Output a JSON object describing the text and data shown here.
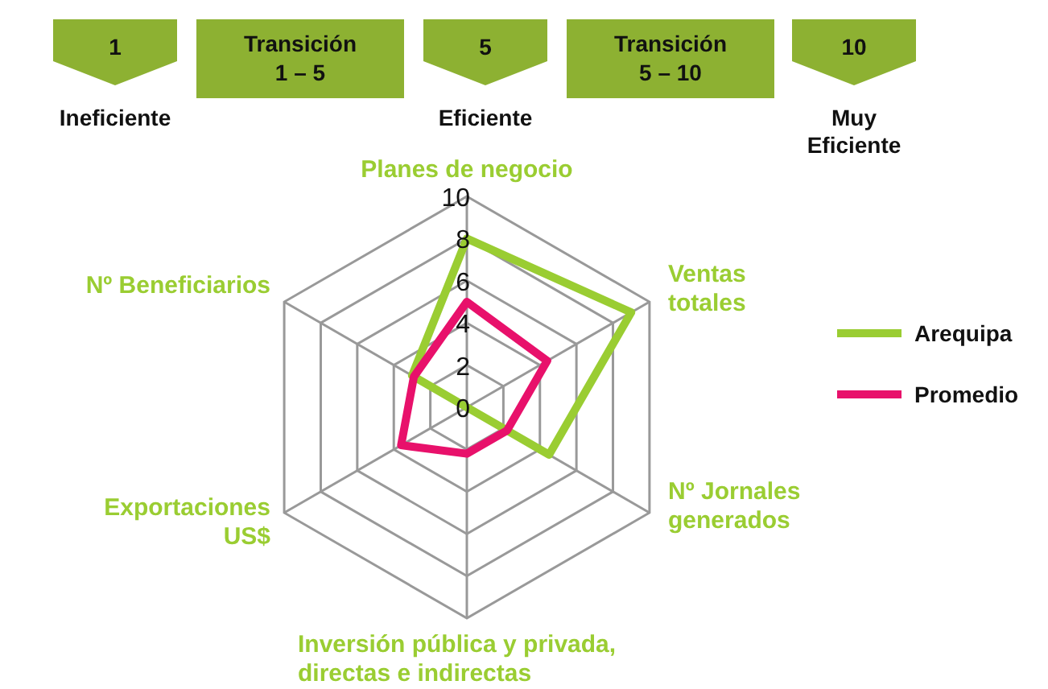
{
  "chart_data": {
    "type": "radar",
    "categories": [
      "Planes de negocio",
      "Ventas\ntotales",
      "Nº Jornales\ngenerados",
      "Inversión pública y privada,\ndirectas e indirectas",
      "Exportaciones\nUS$",
      "Nº Beneficiarios"
    ],
    "series": [
      {
        "name": "Arequipa",
        "color": "#9acd32",
        "values": [
          8,
          9,
          4.5,
          0,
          0,
          3
        ]
      },
      {
        "name": "Promedio",
        "color": "#e8116b",
        "values": [
          5,
          4.4,
          2.2,
          2.2,
          3.6,
          2.9
        ]
      }
    ],
    "ylim": [
      0,
      10
    ],
    "yticks": [
      0,
      2,
      4,
      6,
      8,
      10
    ],
    "grid": true,
    "legend": "right",
    "marker": "none",
    "line_style": "solid",
    "annotations": [
      "1",
      "Transición\n1 – 5",
      "5",
      "Transición\n5 – 10",
      "10",
      "Ineficiente",
      "Eficiente",
      "Muy\nEficiente"
    ]
  }
}
